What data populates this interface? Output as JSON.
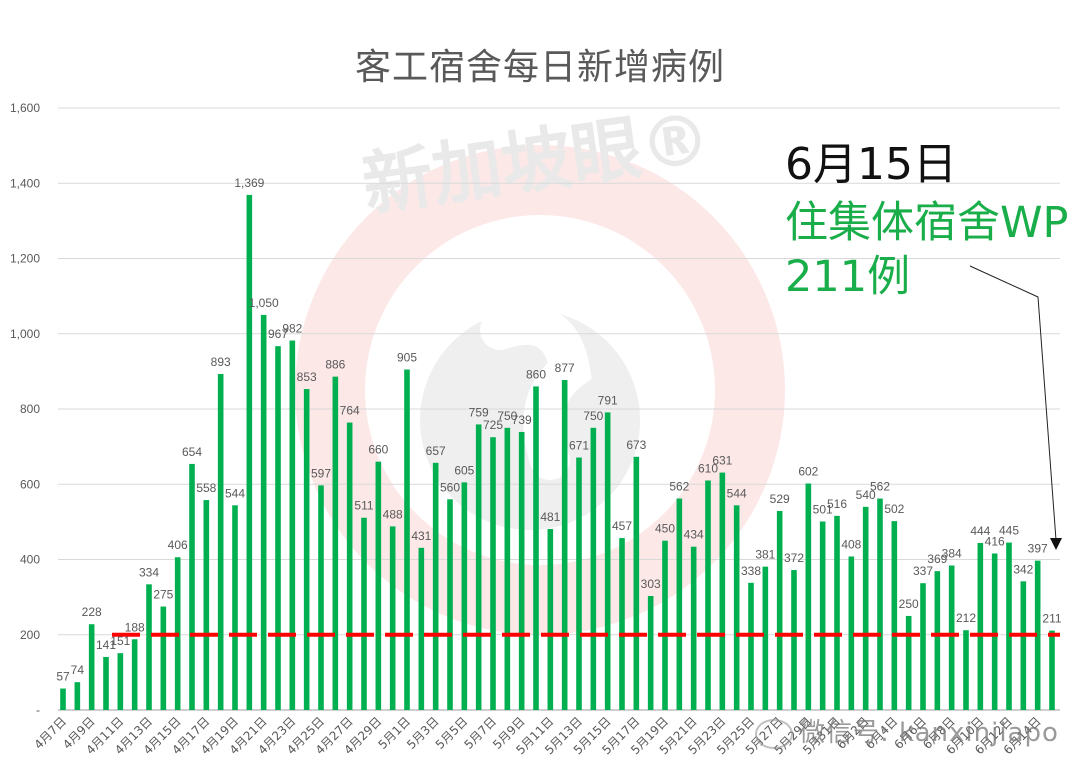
{
  "chart": {
    "title": "客工宿舍每日新增病例",
    "annotation": {
      "date": "6月15日",
      "line1": "住集体宿舍WP",
      "line2": "211例"
    },
    "watermark": "新加坡眼®",
    "wechat_watermark": "微信号: kanxinjiapo"
  },
  "colors": {
    "bar": "#00b050",
    "reference_line": "#ff0000",
    "grid": "#d9d9d9",
    "label": "#595959",
    "annotation_green": "#1aae4a"
  },
  "chart_data": {
    "type": "bar",
    "title": "客工宿舍每日新增病例",
    "xlabel": "",
    "ylabel": "",
    "ylim": [
      0,
      1600
    ],
    "yticks": [
      "-",
      "200",
      "400",
      "600",
      "800",
      "1,000",
      "1,200",
      "1,400",
      "1,600"
    ],
    "grid": true,
    "legend": null,
    "reference_line": {
      "value": 200,
      "style": "dashed",
      "color": "#ff0000"
    },
    "annotations": [
      {
        "text": "6月15日",
        "color": "#111111"
      },
      {
        "text": "住集体宿舍WP 211例",
        "color": "#1aae4a",
        "arrow_to": "6月15日"
      }
    ],
    "categories": [
      "4月7日",
      "4月8日",
      "4月9日",
      "4月10日",
      "4月11日",
      "4月12日",
      "4月13日",
      "4月14日",
      "4月15日",
      "4月16日",
      "4月17日",
      "4月18日",
      "4月19日",
      "4月20日",
      "4月21日",
      "4月22日",
      "4月23日",
      "4月24日",
      "4月25日",
      "4月26日",
      "4月27日",
      "4月28日",
      "4月29日",
      "4月30日",
      "5月1日",
      "5月2日",
      "5月3日",
      "5月4日",
      "5月5日",
      "5月6日",
      "5月7日",
      "5月8日",
      "5月9日",
      "5月10日",
      "5月11日",
      "5月12日",
      "5月13日",
      "5月14日",
      "5月15日",
      "5月16日",
      "5月17日",
      "5月18日",
      "5月19日",
      "5月20日",
      "5月21日",
      "5月22日",
      "5月23日",
      "5月24日",
      "5月25日",
      "5月26日",
      "5月27日",
      "5月28日",
      "5月29日",
      "5月30日",
      "5月31日",
      "6月1日",
      "6月2日",
      "6月3日",
      "6月4日",
      "6月5日",
      "6月6日",
      "6月7日",
      "6月8日",
      "6月9日",
      "6月10日",
      "6月11日",
      "6月12日",
      "6月13日",
      "6月14日",
      "6月15日"
    ],
    "values": [
      57,
      74,
      228,
      141,
      151,
      188,
      334,
      275,
      406,
      654,
      558,
      893,
      544,
      1369,
      1050,
      967,
      982,
      853,
      597,
      886,
      764,
      511,
      660,
      488,
      905,
      431,
      657,
      560,
      605,
      759,
      725,
      750,
      739,
      860,
      481,
      877,
      671,
      750,
      791,
      457,
      673,
      303,
      450,
      562,
      434,
      610,
      631,
      544,
      338,
      381,
      529,
      372,
      602,
      501,
      516,
      408,
      540,
      562,
      502,
      250,
      337,
      369,
      384,
      212,
      444,
      416,
      445,
      342,
      397,
      211
    ],
    "value_labels": [
      "57",
      "74",
      "228",
      "141",
      "151",
      "188",
      "334",
      "275",
      "406",
      "654",
      "558",
      "893",
      "544",
      "1,369",
      "1,050",
      "967",
      "982",
      "853",
      "597",
      "886",
      "764",
      "511",
      "660",
      "488",
      "905",
      "431",
      "657",
      "560",
      "605",
      "759",
      "725",
      "750",
      "739",
      "860",
      "481",
      "877",
      "671",
      "750",
      "791",
      "457",
      "673",
      "303",
      "450",
      "562",
      "434",
      "610",
      "631",
      "544",
      "338",
      "381",
      "529",
      "372",
      "602",
      "501",
      "516",
      "408",
      "540",
      "562",
      "502",
      "250",
      "337",
      "369",
      "384",
      "212",
      "444",
      "416",
      "445",
      "342",
      "397",
      "211"
    ],
    "xtick_labels_shown": [
      "4月7日",
      "4月9日",
      "4月11日",
      "4月13日",
      "4月15日",
      "4月17日",
      "4月19日",
      "4月21日",
      "4月23日",
      "4月25日",
      "4月27日",
      "4月29日",
      "5月1日",
      "5月3日",
      "5月5日",
      "5月7日",
      "5月9日",
      "5月11日",
      "5月13日",
      "5月15日",
      "5月17日",
      "5月19日",
      "5月21日",
      "5月23日",
      "5月25日",
      "5月27日",
      "5月29日",
      "5月31日",
      "6月2日",
      "6月4日",
      "6月6日",
      "6月8日",
      "6月10日",
      "6月12日",
      "6月14日"
    ]
  }
}
